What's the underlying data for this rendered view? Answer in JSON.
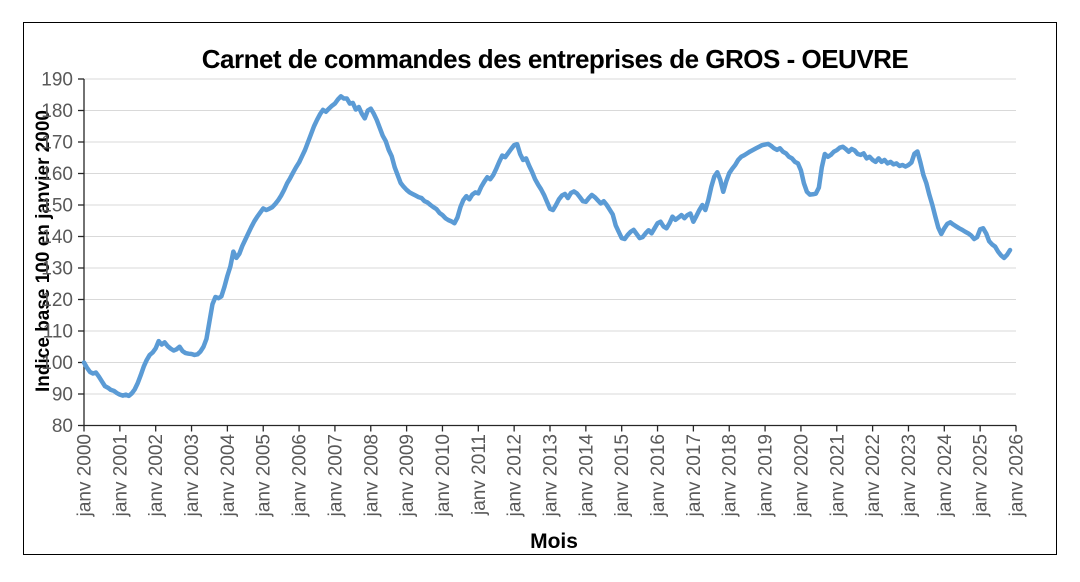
{
  "chart": {
    "title": "Carnet de commandes des entreprises de GROS - OEUVRE",
    "x_axis_title": "Mois",
    "y_axis_title": "Indice base 100 en janvier 2000",
    "colors": {
      "line": "#5B9BD5",
      "gridline": "#D9D9D9",
      "axis": "#262626",
      "tick_label": "#595959",
      "title_text": "#000000",
      "border": "#000000"
    }
  },
  "chart_data": {
    "type": "line",
    "title": "Carnet de commandes des entreprises de GROS - OEUVRE",
    "xlabel": "Mois",
    "ylabel": "Indice base 100 en janvier 2000",
    "ylim": [
      80,
      190
    ],
    "y_tick_step": 10,
    "y_tick_labels": [
      190,
      180,
      170,
      160,
      150,
      140,
      130,
      120,
      110,
      100,
      90,
      80
    ],
    "x_tick_labels": [
      "janv 2000",
      "janv 2001",
      "janv 2002",
      "janv 2003",
      "janv 2004",
      "janv 2005",
      "janv 2006",
      "janv 2007",
      "janv 2008",
      "janv 2009",
      "janv 2010",
      "janv 2011",
      "janv 2012",
      "janv 2013",
      "janv 2014",
      "janv 2015",
      "janv 2016",
      "janv 2017",
      "janv 2018",
      "janv 2019",
      "janv 2020",
      "janv 2021",
      "janv 2022",
      "janv 2023",
      "janv 2024",
      "janv 2025",
      "janv 2026"
    ],
    "grid": true,
    "legend": false,
    "series": [
      {
        "name": "Carnet de commandes",
        "start_label": "janv 2000",
        "frequency": "monthly",
        "values": [
          100.0,
          98.3,
          97.0,
          96.5,
          96.8,
          95.5,
          94.0,
          92.5,
          92.0,
          91.3,
          91.0,
          90.3,
          89.8,
          89.5,
          89.8,
          89.4,
          90.2,
          91.5,
          93.5,
          96.0,
          98.7,
          100.8,
          102.4,
          103.2,
          104.5,
          106.8,
          105.7,
          106.4,
          105.2,
          104.4,
          103.8,
          104.2,
          105.0,
          103.6,
          103.0,
          102.8,
          102.7,
          102.4,
          102.6,
          103.5,
          105.0,
          107.5,
          113.0,
          118.5,
          120.8,
          120.4,
          121.0,
          124.0,
          127.5,
          130.5,
          135.2,
          133.2,
          134.5,
          137.0,
          139.0,
          141.0,
          143.0,
          144.8,
          146.3,
          147.6,
          148.9,
          148.4,
          148.8,
          149.3,
          150.3,
          151.5,
          153.0,
          154.8,
          156.9,
          158.5,
          160.3,
          162.0,
          163.5,
          165.5,
          167.5,
          170.0,
          172.5,
          175.0,
          177.0,
          178.8,
          180.2,
          179.6,
          180.6,
          181.5,
          182.2,
          183.5,
          184.5,
          183.8,
          183.8,
          182.2,
          182.4,
          180.3,
          181.1,
          179.0,
          177.5,
          180.0,
          180.6,
          179.0,
          177.0,
          174.5,
          172.0,
          170.3,
          167.5,
          165.5,
          162.0,
          159.5,
          157.0,
          155.8,
          154.8,
          154.0,
          153.5,
          153.0,
          152.5,
          152.2,
          151.2,
          150.8,
          150.0,
          149.3,
          148.7,
          147.5,
          146.8,
          145.8,
          145.2,
          144.8,
          144.2,
          146.0,
          149.3,
          151.6,
          152.8,
          151.8,
          153.3,
          154.0,
          153.7,
          155.8,
          157.4,
          158.8,
          158.2,
          159.5,
          161.5,
          163.7,
          165.7,
          165.2,
          166.5,
          167.8,
          169.0,
          169.3,
          166.2,
          164.3,
          164.8,
          162.5,
          160.5,
          158.2,
          156.5,
          155.0,
          153.2,
          151.0,
          148.8,
          148.4,
          150.0,
          151.8,
          153.0,
          153.5,
          152.2,
          153.8,
          154.3,
          153.7,
          152.5,
          151.2,
          151.0,
          152.2,
          153.2,
          152.5,
          151.5,
          150.5,
          151.2,
          150.0,
          148.5,
          147.0,
          143.5,
          141.5,
          139.5,
          139.2,
          140.5,
          141.5,
          142.1,
          140.8,
          139.5,
          139.8,
          141.0,
          142.0,
          141.0,
          142.6,
          144.2,
          144.7,
          143.2,
          142.6,
          144.2,
          146.3,
          145.3,
          146.0,
          146.8,
          145.8,
          146.8,
          147.3,
          144.7,
          146.5,
          148.4,
          150.0,
          148.4,
          151.6,
          155.8,
          159.0,
          160.4,
          158.0,
          154.2,
          157.5,
          160.1,
          161.5,
          162.7,
          164.3,
          165.3,
          165.8,
          166.4,
          167.0,
          167.5,
          168.0,
          168.5,
          169.0,
          169.2,
          169.4,
          168.8,
          168.0,
          167.5,
          168.0,
          166.9,
          166.4,
          165.3,
          164.8,
          163.7,
          163.2,
          161.0,
          156.9,
          154.2,
          153.3,
          153.4,
          153.6,
          155.5,
          162.0,
          166.2,
          165.3,
          165.9,
          166.9,
          167.4,
          168.2,
          168.5,
          167.8,
          166.9,
          167.8,
          167.3,
          166.2,
          165.9,
          166.4,
          164.8,
          165.3,
          164.3,
          163.7,
          164.8,
          163.7,
          164.3,
          163.2,
          163.7,
          162.9,
          163.2,
          162.4,
          162.7,
          162.2,
          162.7,
          163.5,
          166.3,
          167.0,
          163.5,
          159.5,
          156.9,
          153.2,
          150.0,
          146.3,
          142.8,
          140.8,
          142.6,
          144.0,
          144.5,
          143.8,
          143.2,
          142.6,
          142.1,
          141.5,
          141.0,
          140.3,
          139.2,
          139.8,
          142.3,
          142.6,
          141.0,
          138.5,
          137.5,
          136.8,
          135.2,
          134.0,
          133.2,
          134.2,
          135.7
        ]
      }
    ]
  }
}
